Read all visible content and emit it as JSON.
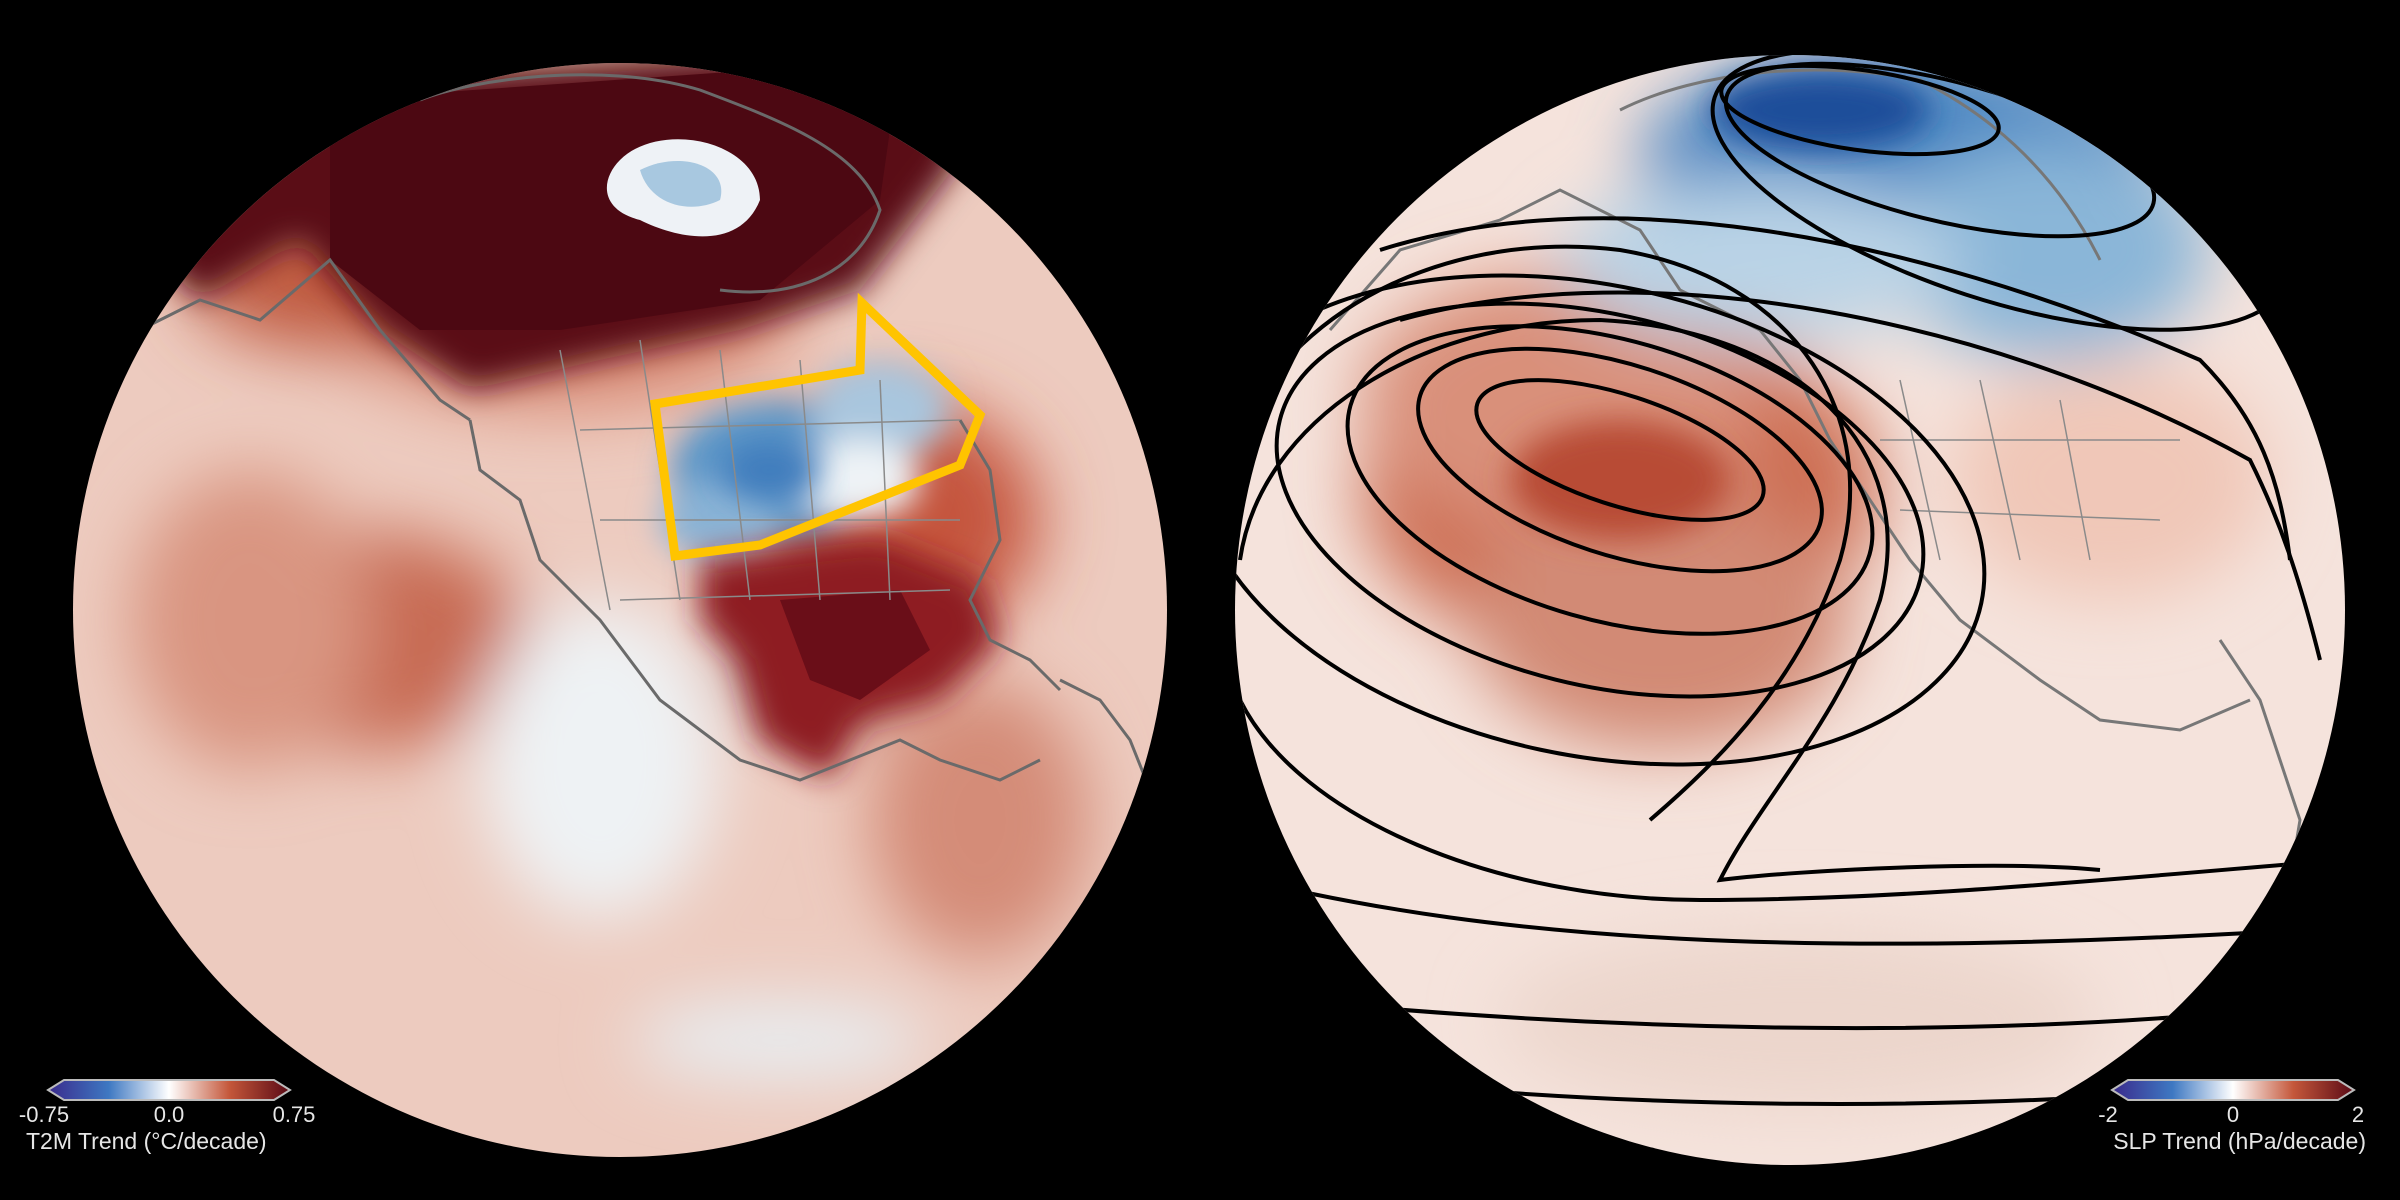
{
  "panels": [
    {
      "variable": "T2M",
      "colorbar": {
        "ticks": [
          "-0.75",
          "0.0",
          "0.75"
        ],
        "label": "T2M Trend (°C/decade)",
        "colors": [
          "#3a2a8c",
          "#3e78c2",
          "#ffffff",
          "#c4573a",
          "#5a0a16"
        ]
      },
      "region_box_color": "#ffc400"
    },
    {
      "variable": "SLP",
      "colorbar": {
        "ticks": [
          "-2",
          "0",
          "2"
        ],
        "label": "SLP Trend (hPa/decade)",
        "colors": [
          "#3a2a8c",
          "#3e78c2",
          "#ffffff",
          "#c4573a",
          "#5a0a16"
        ]
      },
      "contour_color": "#000000"
    }
  ]
}
